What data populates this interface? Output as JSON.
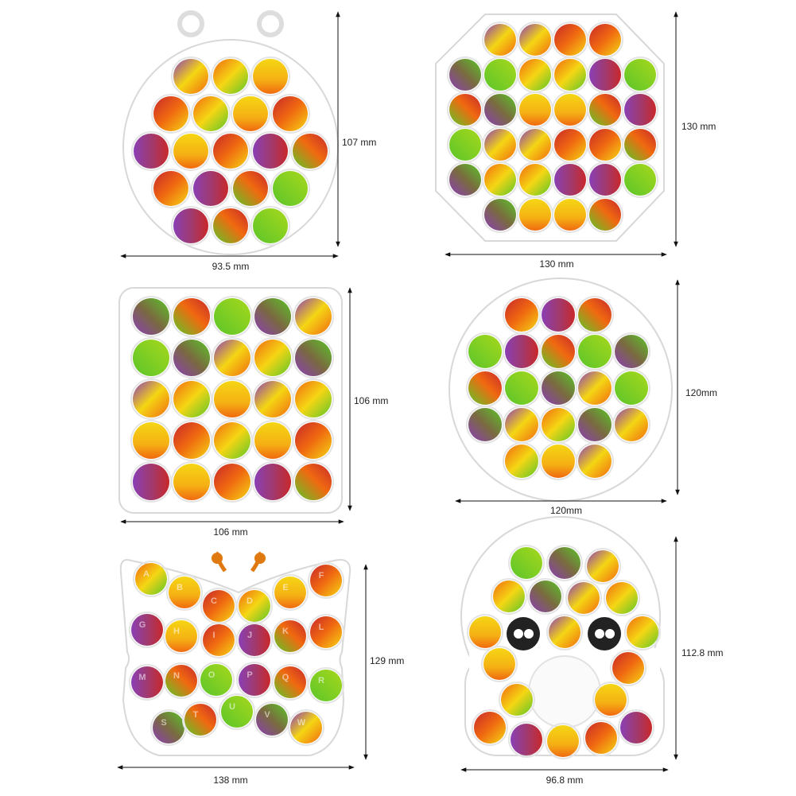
{
  "products": [
    {
      "width_label": "93.5 mm",
      "height_label": "107 mm"
    },
    {
      "width_label": "130 mm",
      "height_label": "130 mm"
    },
    {
      "width_label": "106 mm",
      "height_label": "106 mm"
    },
    {
      "width_label": "120mm",
      "height_label": "120mm"
    },
    {
      "width_label": "138 mm",
      "height_label": "129 mm"
    },
    {
      "width_label": "96.8 mm",
      "height_label": "112.8 mm"
    }
  ],
  "butterfly_letters": [
    "A",
    "B",
    "C",
    "D",
    "E",
    "F",
    "G",
    "H",
    "I",
    "J",
    "K",
    "L",
    "M",
    "N",
    "O",
    "P",
    "Q",
    "R",
    "S",
    "T",
    "U",
    "V",
    "W"
  ]
}
